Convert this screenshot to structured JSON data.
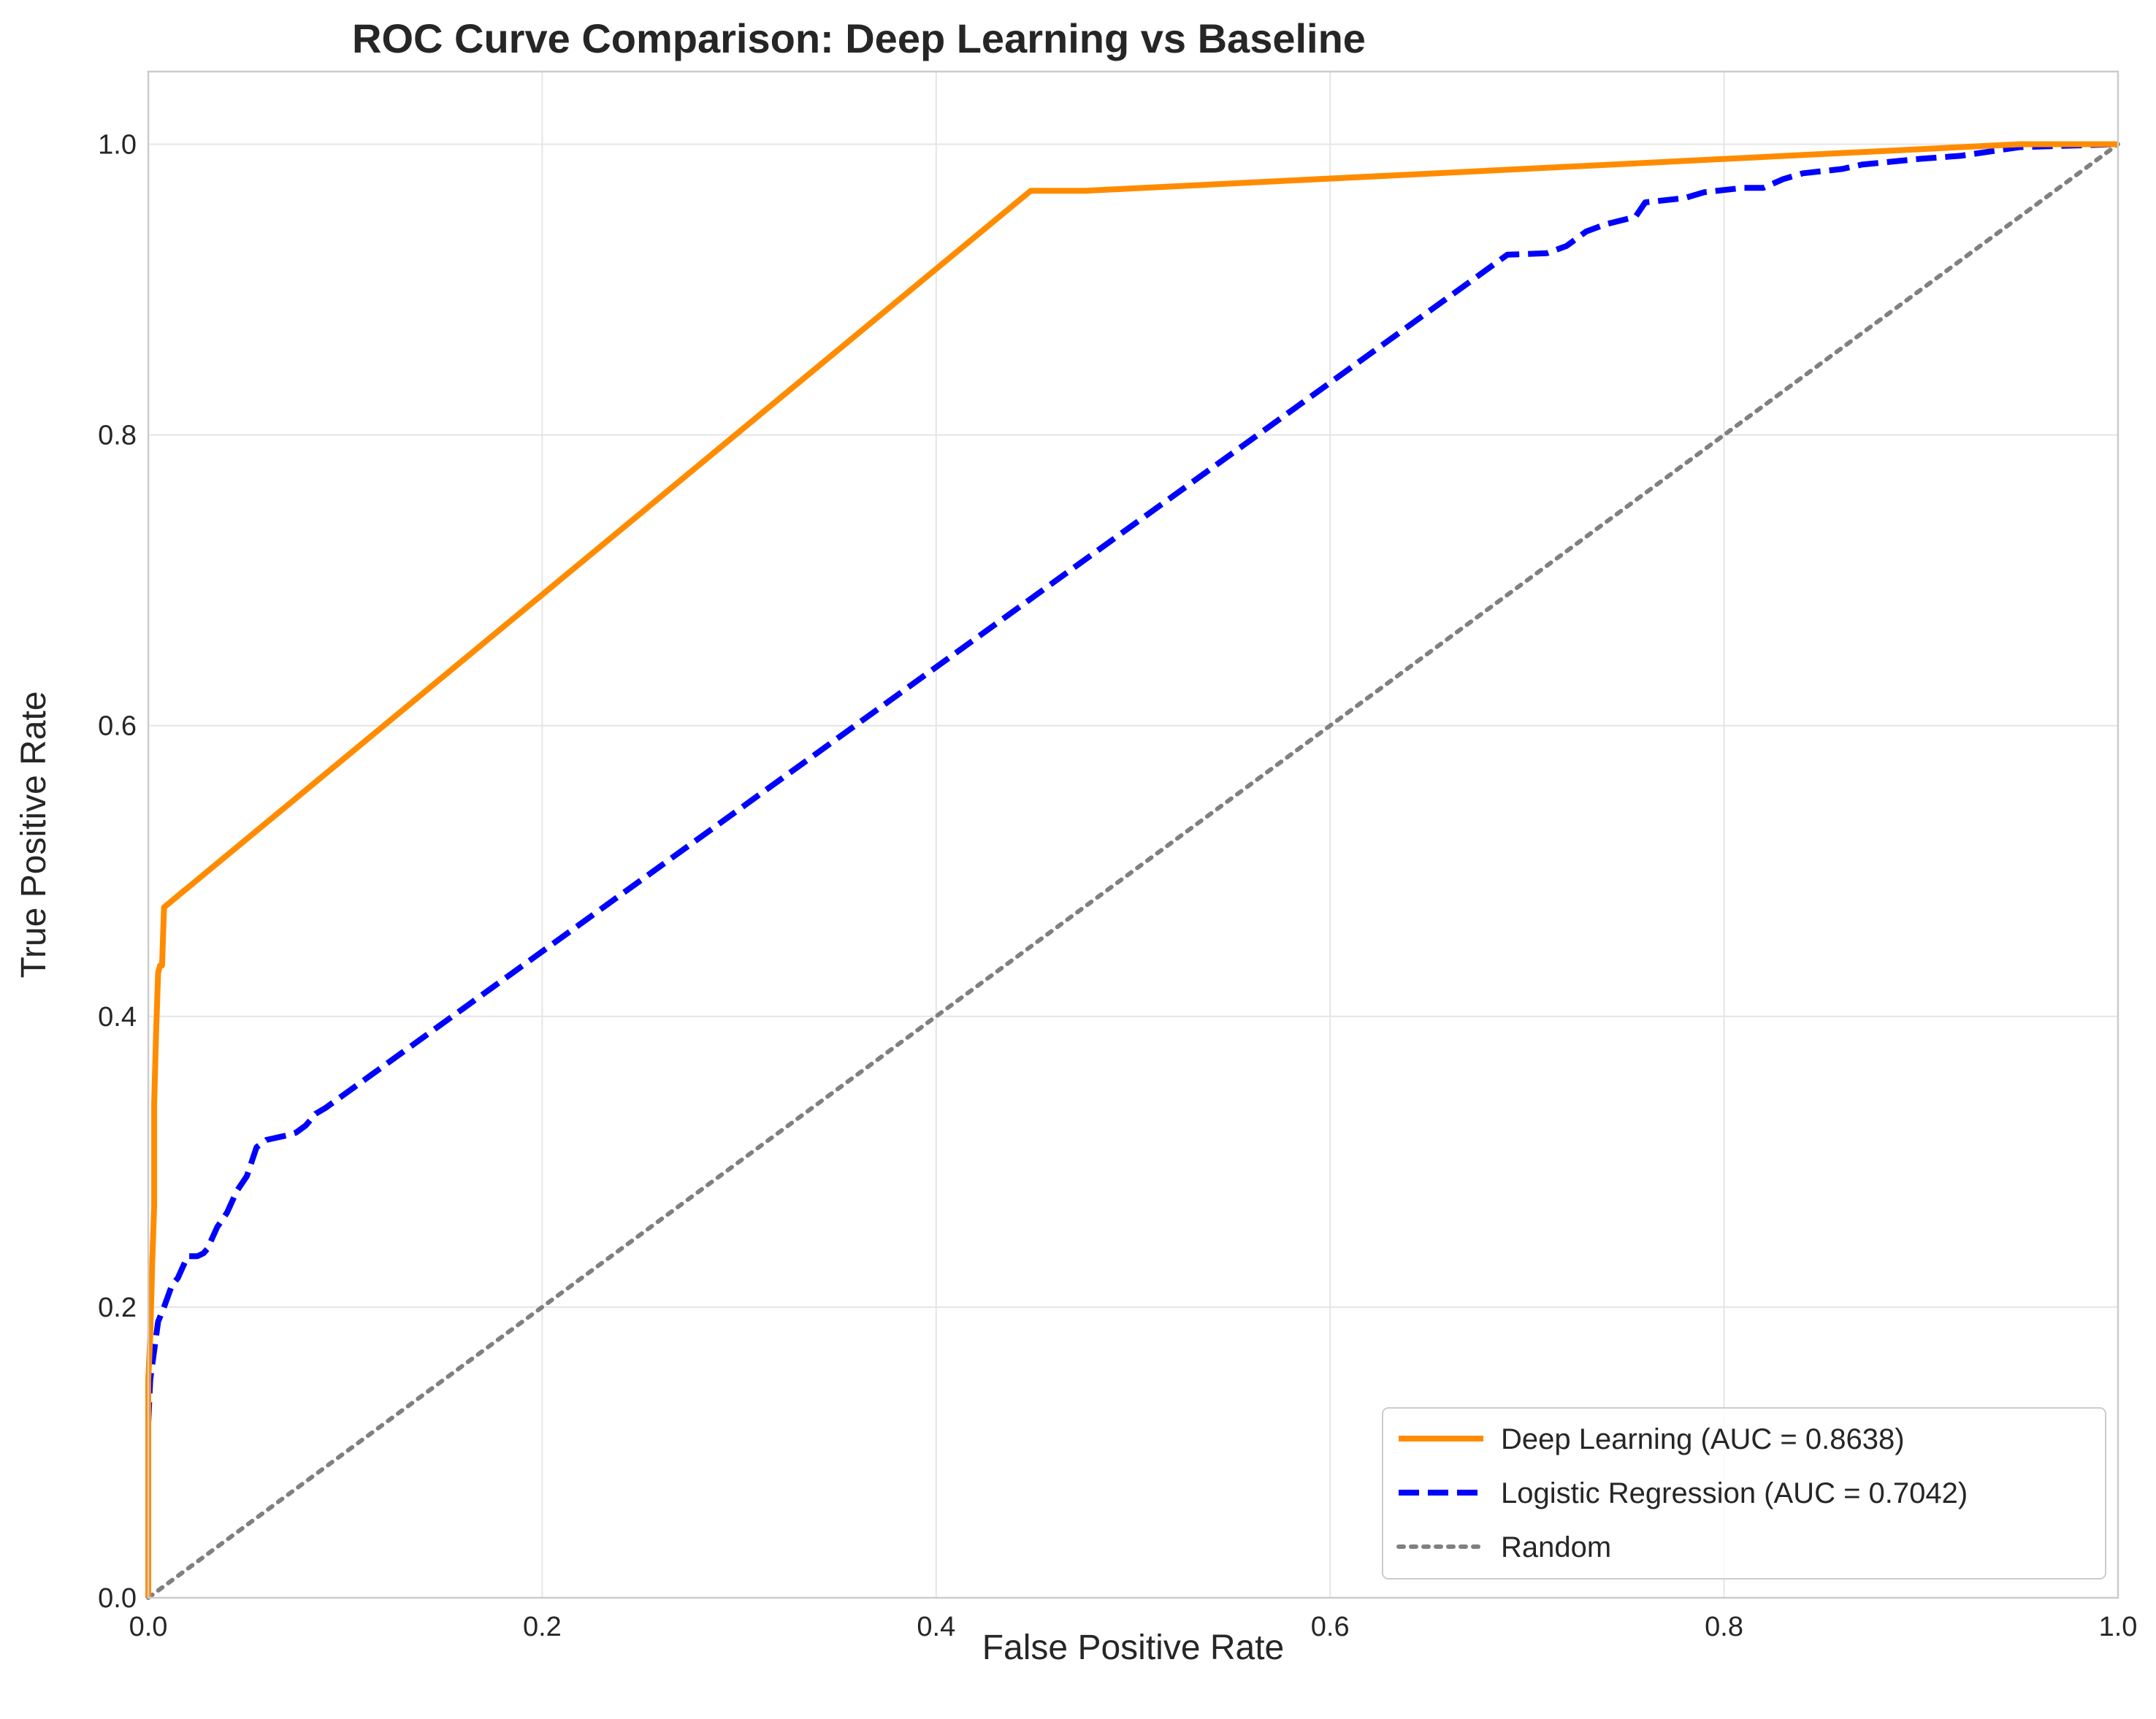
{
  "chart_data": {
    "type": "line",
    "title": "ROC Curve Comparison: Deep Learning vs Baseline",
    "xlabel": "False Positive Rate",
    "ylabel": "True Positive Rate",
    "xlim": [
      0.0,
      1.0
    ],
    "ylim": [
      0.0,
      1.05
    ],
    "xticks": [
      "0.0",
      "0.2",
      "0.4",
      "0.6",
      "0.8",
      "1.0"
    ],
    "yticks": [
      "0.0",
      "0.2",
      "0.4",
      "0.6",
      "0.8",
      "1.0"
    ],
    "grid": true,
    "legend_position": "lower-right",
    "series": [
      {
        "name": "Deep Learning (AUC = 0.8638)",
        "color": "#ff8c00",
        "style": "solid",
        "x": [
          0.0,
          0.0,
          0.001,
          0.002,
          0.003,
          0.003,
          0.004,
          0.005,
          0.005,
          0.006,
          0.007,
          0.008,
          0.448,
          0.476,
          0.95,
          1.0
        ],
        "y": [
          0.0,
          0.15,
          0.18,
          0.23,
          0.27,
          0.34,
          0.39,
          0.43,
          0.43,
          0.435,
          0.435,
          0.475,
          0.968,
          0.968,
          1.0,
          1.0
        ]
      },
      {
        "name": "Logistic Regression (AUC = 0.7042)",
        "color": "#0000ff",
        "style": "dashed",
        "x": [
          0.0,
          0.0,
          0.001,
          0.003,
          0.005,
          0.008,
          0.012,
          0.015,
          0.02,
          0.025,
          0.028,
          0.03,
          0.035,
          0.04,
          0.045,
          0.05,
          0.055,
          0.06,
          0.07,
          0.075,
          0.08,
          0.085,
          0.09,
          0.69,
          0.71,
          0.72,
          0.73,
          0.74,
          0.755,
          0.76,
          0.78,
          0.79,
          0.81,
          0.82,
          0.83,
          0.84,
          0.86,
          0.87,
          0.9,
          0.92,
          0.95,
          1.0
        ],
        "y": [
          0.0,
          0.12,
          0.15,
          0.17,
          0.19,
          0.2,
          0.215,
          0.22,
          0.235,
          0.235,
          0.237,
          0.24,
          0.255,
          0.265,
          0.28,
          0.29,
          0.31,
          0.315,
          0.318,
          0.32,
          0.325,
          0.333,
          0.337,
          0.924,
          0.925,
          0.93,
          0.94,
          0.945,
          0.95,
          0.96,
          0.963,
          0.967,
          0.97,
          0.97,
          0.976,
          0.98,
          0.983,
          0.986,
          0.99,
          0.992,
          0.998,
          1.0
        ]
      },
      {
        "name": "Random",
        "color": "#808080",
        "style": "dotted",
        "x": [
          0.0,
          1.0
        ],
        "y": [
          0.0,
          1.0
        ]
      }
    ]
  }
}
